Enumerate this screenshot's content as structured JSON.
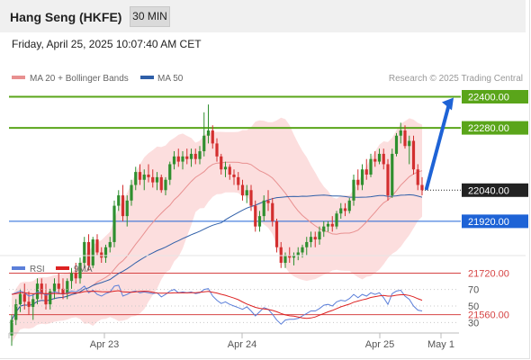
{
  "header": {
    "title": "Hang Seng (HKFE)",
    "interval": "30 MIN"
  },
  "timestamp": "Friday, April 25, 2025 10:07:40 AM CET",
  "legend": {
    "bollinger": "MA 20 + Bollinger Bands",
    "ma50": "MA 50"
  },
  "credit": "Research © 2025 Trading Central",
  "colors": {
    "up": "#2f8f2f",
    "down": "#d32f2f",
    "resistance": "#5aa51a",
    "pivot": "#1e63d6",
    "support": "#d64444",
    "last": "#222222",
    "ma20": "#e89090",
    "ma50": "#2f5fa8",
    "band": "#fcdada",
    "rsi": "#5b7fd9",
    "rsi_ma": "#dd2222"
  },
  "chart_data": [
    {
      "type": "candlestick",
      "title": "Hang Seng (HKFE) 30 MIN",
      "x_ticks": [
        "Apr 23",
        "Apr 24",
        "Apr 25",
        "May 1"
      ],
      "ylim": [
        20000,
        22600
      ],
      "grid": false,
      "legend_position": "top-left",
      "levels": [
        {
          "value": 22400,
          "label": "22400.00",
          "kind": "resistance"
        },
        {
          "value": 22280,
          "label": "22280.00",
          "kind": "resistance"
        },
        {
          "value": 22040,
          "label": "22040.00",
          "kind": "last"
        },
        {
          "value": 21920,
          "label": "21920.00",
          "kind": "pivot"
        },
        {
          "value": 21720,
          "label": "21720.00",
          "kind": "support"
        },
        {
          "value": 21560,
          "label": "21560.00",
          "kind": "support"
        }
      ],
      "forecast_arrow": {
        "from": 22040,
        "to": 22400,
        "direction": "up"
      },
      "candles": [
        [
          21480,
          21560,
          21440,
          21540
        ],
        [
          21540,
          21620,
          21520,
          21600
        ],
        [
          21600,
          21660,
          21570,
          21640
        ],
        [
          21640,
          21680,
          21580,
          21610
        ],
        [
          21610,
          21650,
          21560,
          21590
        ],
        [
          21590,
          21640,
          21540,
          21620
        ],
        [
          21620,
          21700,
          21600,
          21680
        ],
        [
          21680,
          21700,
          21620,
          21640
        ],
        [
          21640,
          21680,
          21580,
          21600
        ],
        [
          21600,
          21660,
          21580,
          21650
        ],
        [
          21650,
          21700,
          21620,
          21680
        ],
        [
          21680,
          21720,
          21640,
          21660
        ],
        [
          21660,
          21700,
          21620,
          21640
        ],
        [
          21640,
          21700,
          21620,
          21690
        ],
        [
          21690,
          21740,
          21660,
          21720
        ],
        [
          21720,
          21760,
          21680,
          21700
        ],
        [
          21700,
          21780,
          21680,
          21760
        ],
        [
          21760,
          21860,
          21740,
          21840
        ],
        [
          21840,
          21870,
          21730,
          21750
        ],
        [
          21750,
          21860,
          21740,
          21850
        ],
        [
          21850,
          21870,
          21790,
          21800
        ],
        [
          21800,
          21820,
          21760,
          21780
        ],
        [
          21780,
          21830,
          21760,
          21820
        ],
        [
          21820,
          21860,
          21800,
          21840
        ],
        [
          21840,
          22000,
          21820,
          21980
        ],
        [
          21980,
          22040,
          21960,
          22020
        ],
        [
          22020,
          22060,
          21920,
          21940
        ],
        [
          21940,
          22020,
          21900,
          22000
        ],
        [
          22000,
          22080,
          21980,
          22060
        ],
        [
          22060,
          22130,
          22040,
          22110
        ],
        [
          22110,
          22140,
          22060,
          22080
        ],
        [
          22080,
          22120,
          22040,
          22100
        ],
        [
          22100,
          22140,
          22070,
          22090
        ],
        [
          22090,
          22120,
          22050,
          22070
        ],
        [
          22070,
          22110,
          22040,
          22090
        ],
        [
          22090,
          22100,
          22030,
          22040
        ],
        [
          22040,
          22090,
          22020,
          22080
        ],
        [
          22080,
          22150,
          22060,
          22140
        ],
        [
          22140,
          22190,
          22120,
          22170
        ],
        [
          22170,
          22200,
          22130,
          22150
        ],
        [
          22150,
          22190,
          22120,
          22170
        ],
        [
          22170,
          22200,
          22140,
          22160
        ],
        [
          22160,
          22200,
          22130,
          22180
        ],
        [
          22180,
          22200,
          22140,
          22160
        ],
        [
          22160,
          22210,
          22140,
          22190
        ],
        [
          22190,
          22340,
          22170,
          22250
        ],
        [
          22250,
          22370,
          22220,
          22270
        ],
        [
          22270,
          22290,
          22200,
          22220
        ],
        [
          22220,
          22240,
          22150,
          22170
        ],
        [
          22170,
          22180,
          22100,
          22120
        ],
        [
          22120,
          22150,
          22090,
          22130
        ],
        [
          22130,
          22140,
          22080,
          22100
        ],
        [
          22100,
          22120,
          22060,
          22090
        ],
        [
          22090,
          22110,
          22040,
          22060
        ],
        [
          22060,
          22080,
          22000,
          22020
        ],
        [
          22020,
          22060,
          21990,
          22040
        ],
        [
          22040,
          22060,
          21960,
          21980
        ],
        [
          21980,
          22000,
          21880,
          21900
        ],
        [
          21900,
          21960,
          21880,
          21940
        ],
        [
          21940,
          22020,
          21920,
          22000
        ],
        [
          22000,
          22040,
          21960,
          21990
        ],
        [
          21990,
          22010,
          21900,
          21920
        ],
        [
          21920,
          21930,
          21800,
          21820
        ],
        [
          21820,
          21840,
          21740,
          21760
        ],
        [
          21760,
          21800,
          21740,
          21790
        ],
        [
          21790,
          21820,
          21760,
          21780
        ],
        [
          21780,
          21800,
          21750,
          21790
        ],
        [
          21790,
          21820,
          21770,
          21800
        ],
        [
          21800,
          21830,
          21780,
          21820
        ],
        [
          21820,
          21860,
          21790,
          21840
        ],
        [
          21840,
          21880,
          21820,
          21860
        ],
        [
          21860,
          21880,
          21820,
          21850
        ],
        [
          21850,
          21900,
          21830,
          21880
        ],
        [
          21880,
          21920,
          21860,
          21900
        ],
        [
          21900,
          21920,
          21880,
          21910
        ],
        [
          21910,
          21940,
          21880,
          21900
        ],
        [
          21900,
          21960,
          21890,
          21950
        ],
        [
          21950,
          21990,
          21930,
          21970
        ],
        [
          21970,
          21990,
          21940,
          21960
        ],
        [
          21960,
          22010,
          21950,
          22000
        ],
        [
          22000,
          22100,
          21980,
          22080
        ],
        [
          22080,
          22120,
          22040,
          22060
        ],
        [
          22060,
          22140,
          22040,
          22120
        ],
        [
          22120,
          22160,
          22080,
          22100
        ],
        [
          22100,
          22180,
          22090,
          22160
        ],
        [
          22160,
          22190,
          22130,
          22150
        ],
        [
          22150,
          22200,
          22140,
          22180
        ],
        [
          22180,
          22200,
          22120,
          22140
        ],
        [
          22140,
          22160,
          22000,
          22020
        ],
        [
          22020,
          22200,
          22010,
          22180
        ],
        [
          22180,
          22260,
          22170,
          22250
        ],
        [
          22250,
          22300,
          22220,
          22270
        ],
        [
          22270,
          22290,
          22200,
          22210
        ],
        [
          22210,
          22250,
          22140,
          22230
        ],
        [
          22230,
          22250,
          22100,
          22120
        ],
        [
          22120,
          22140,
          22040,
          22060
        ],
        [
          22060,
          22090,
          22020,
          22040
        ]
      ]
    },
    {
      "type": "line",
      "title": "RSI",
      "series": [
        {
          "name": "RSI"
        },
        {
          "name": "9MA"
        }
      ],
      "yticks": [
        70,
        50,
        30
      ],
      "ylim": [
        10,
        90
      ],
      "rsi_values": [
        64,
        66,
        68,
        66,
        62,
        63,
        67,
        66,
        63,
        65,
        67,
        66,
        64,
        66,
        68,
        67,
        70,
        74,
        66,
        69,
        64,
        62,
        65,
        67,
        74,
        75,
        62,
        64,
        67,
        68,
        66,
        67,
        66,
        65,
        66,
        61,
        64,
        68,
        70,
        66,
        67,
        66,
        67,
        65,
        66,
        70,
        71,
        62,
        57,
        53,
        55,
        52,
        50,
        48,
        46,
        49,
        44,
        38,
        43,
        48,
        46,
        40,
        33,
        28,
        33,
        34,
        34,
        35,
        38,
        41,
        44,
        44,
        47,
        51,
        52,
        50,
        55,
        57,
        56,
        59,
        64,
        60,
        64,
        62,
        66,
        64,
        66,
        60,
        52,
        65,
        68,
        69,
        62,
        58,
        50,
        45,
        44
      ]
    }
  ]
}
